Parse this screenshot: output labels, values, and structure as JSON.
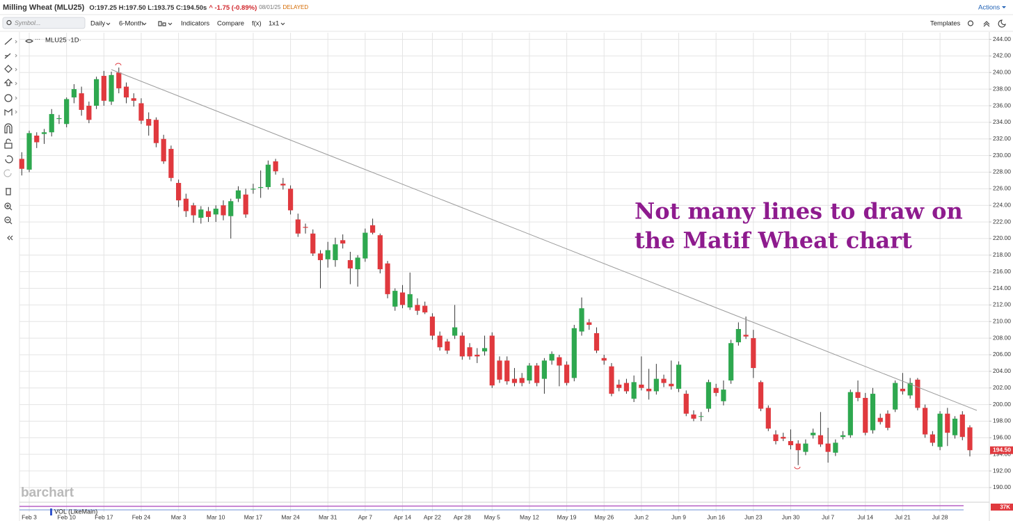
{
  "ui": {
    "symbol_title": "Milling Wheat (MLU25)",
    "ohlc": "O:197.25 H:197.50 L:193.75 C:194.50s",
    "change": "^ -1.75 (-0.89%)",
    "date": "08/01/25",
    "status": "DELAYED",
    "actions": "Actions",
    "symbol_placeholder": "Symbol...",
    "toolbar": [
      "Daily",
      "6-Month",
      "Indicators",
      "Compare",
      "f(x)",
      "1x1"
    ],
    "templates": "Templates",
    "chart_label": "MLU25 ·1D·",
    "watermark": "barchart",
    "volume_label": "VOL (LikeMain)",
    "volume_scale_label": "37K"
  },
  "chart_data": {
    "type": "candlestick",
    "annotations": [
      "Not many lines to draw on",
      "the Matif Wheat chart"
    ],
    "annotation_color": "#8e1b8e",
    "up_color": "#2ea84f",
    "down_color": "#e0393e",
    "last_price_label": "194.50",
    "grid": true,
    "categories": [
      null,
      "Feb 3",
      null,
      null,
      null,
      null,
      "Feb 10",
      null,
      null,
      null,
      null,
      "Feb 17",
      null,
      null,
      null,
      null,
      "Feb 24",
      null,
      null,
      null,
      null,
      "Mar 3",
      null,
      null,
      null,
      null,
      "Mar 10",
      null,
      null,
      null,
      null,
      "Mar 17",
      null,
      null,
      null,
      null,
      "Mar 24",
      null,
      null,
      null,
      null,
      "Mar 31",
      null,
      null,
      null,
      null,
      "Apr 7",
      null,
      null,
      null,
      null,
      "Apr 14",
      null,
      null,
      null,
      "Apr 22",
      null,
      null,
      null,
      "Apr 28",
      null,
      null,
      null,
      "May 5",
      null,
      null,
      null,
      null,
      "May 12",
      null,
      null,
      null,
      null,
      "May 19",
      null,
      null,
      null,
      null,
      "May 26",
      null,
      null,
      null,
      null,
      "Jun 2",
      null,
      null,
      null,
      null,
      "Jun 9",
      null,
      null,
      null,
      null,
      "Jun 16",
      null,
      null,
      null,
      null,
      "Jun 23",
      null,
      null,
      null,
      null,
      "Jun 30",
      null,
      null,
      null,
      null,
      "Jul 7",
      null,
      null,
      null,
      null,
      "Jul 14",
      null,
      null,
      null,
      null,
      "Jul 21",
      null,
      null,
      null,
      null,
      "Jul 28",
      null,
      null,
      null,
      null
    ],
    "open": [
      229.6,
      228.3,
      232.4,
      232.6,
      232.8,
      234.4,
      233.8,
      237.0,
      237.5,
      236.0,
      236.0,
      239.6,
      236.5,
      240.0,
      238.3,
      236.9,
      236.3,
      234.4,
      234.3,
      232.0,
      230.8,
      226.7,
      224.8,
      224.0,
      222.5,
      223.3,
      222.9,
      224.0,
      222.7,
      224.8,
      225.3,
      225.9,
      226.1,
      226.2,
      229.3,
      226.6,
      226.0,
      222.3,
      221.4,
      220.6,
      218.2,
      217.5,
      217.4,
      219.8,
      217.4,
      216.3,
      217.6,
      221.6,
      220.4,
      217.0,
      211.8,
      213.5,
      211.7,
      212.0,
      211.9,
      210.6,
      208.3,
      207.6,
      208.3,
      208.3,
      206.9,
      206.0,
      206.4,
      208.3,
      205.3,
      205.3,
      203.1,
      203.2,
      202.9,
      204.7,
      203.1,
      205.3,
      205.7,
      204.8,
      203.2,
      208.8,
      209.9,
      208.6,
      205.6,
      204.6,
      202.4,
      202.6,
      200.7,
      202.4,
      201.9,
      201.6,
      203.1,
      202.5,
      201.9,
      201.3,
      198.8,
      198.6,
      199.5,
      202.0,
      200.4,
      202.9,
      207.5,
      208.4,
      208.0,
      202.7,
      199.6,
      196.4,
      196.1,
      195.6,
      195.3,
      194.3,
      196.3,
      196.3,
      195.3,
      194.2,
      196.1,
      196.3,
      201.5,
      200.8,
      196.9,
      198.4,
      198.9,
      199.4,
      201.9,
      201.1,
      203.0,
      199.6,
      196.4,
      194.9,
      198.9,
      196.3,
      198.8,
      197.25
    ],
    "high": [
      230.4,
      233.0,
      232.8,
      233.2,
      235.6,
      234.9,
      237.0,
      238.6,
      238.3,
      236.5,
      239.5,
      240.2,
      240.1,
      240.6,
      238.8,
      237.5,
      236.9,
      235.2,
      234.6,
      232.5,
      231.2,
      227.1,
      225.4,
      224.3,
      223.9,
      223.8,
      224.0,
      224.6,
      224.8,
      226.3,
      226.0,
      226.6,
      228.2,
      229.4,
      229.6,
      227.3,
      226.4,
      223.0,
      221.8,
      221.1,
      218.6,
      219.6,
      220.1,
      220.5,
      218.4,
      218.0,
      221.2,
      222.4,
      220.6,
      217.3,
      214.0,
      214.4,
      215.9,
      212.8,
      212.4,
      211.0,
      208.8,
      207.9,
      212.0,
      208.7,
      207.4,
      206.8,
      208.3,
      208.7,
      205.8,
      205.8,
      204.4,
      203.8,
      205.0,
      205.0,
      205.6,
      206.4,
      206.0,
      205.2,
      209.6,
      212.9,
      210.3,
      209.3,
      206.0,
      205.0,
      203.0,
      203.1,
      203.5,
      205.8,
      204.3,
      204.9,
      203.6,
      205.3,
      205.2,
      201.7,
      199.3,
      199.1,
      203.0,
      202.5,
      202.9,
      207.8,
      209.9,
      210.6,
      209.0,
      202.9,
      199.9,
      196.9,
      196.6,
      197.0,
      195.7,
      195.8,
      197.1,
      199.1,
      197.2,
      195.8,
      196.8,
      201.8,
      202.9,
      201.4,
      202.0,
      198.9,
      199.3,
      202.9,
      203.8,
      203.2,
      203.2,
      200.0,
      196.8,
      199.2,
      199.6,
      198.6,
      199.2,
      197.5
    ],
    "low": [
      227.6,
      228.0,
      230.9,
      231.4,
      232.3,
      233.8,
      233.4,
      236.3,
      234.8,
      233.9,
      235.6,
      236.0,
      236.1,
      237.5,
      236.3,
      235.9,
      233.8,
      232.4,
      231.0,
      229.0,
      226.9,
      223.8,
      222.6,
      221.9,
      221.8,
      222.0,
      222.0,
      222.2,
      220.0,
      224.4,
      222.5,
      225.4,
      224.9,
      225.9,
      227.7,
      225.9,
      222.9,
      220.2,
      220.6,
      217.9,
      214.0,
      216.5,
      216.6,
      218.8,
      214.5,
      214.2,
      217.2,
      220.5,
      215.8,
      212.8,
      211.3,
      211.6,
      211.4,
      210.8,
      210.9,
      207.8,
      206.5,
      206.1,
      207.9,
      205.4,
      205.4,
      205.0,
      205.9,
      202.0,
      202.6,
      202.4,
      202.2,
      202.2,
      202.5,
      202.2,
      201.3,
      204.8,
      202.2,
      202.3,
      202.8,
      208.3,
      209.0,
      206.2,
      204.8,
      201.0,
      201.6,
      201.3,
      200.3,
      201.7,
      200.6,
      201.2,
      202.1,
      201.8,
      201.5,
      198.6,
      198.0,
      198.0,
      199.1,
      201.0,
      199.9,
      202.5,
      207.1,
      207.9,
      203.2,
      199.2,
      196.8,
      195.2,
      195.6,
      194.6,
      192.7,
      193.9,
      195.9,
      194.9,
      193.0,
      193.8,
      195.8,
      196.0,
      200.4,
      196.3,
      196.5,
      197.6,
      196.9,
      199.1,
      201.2,
      200.7,
      199.3,
      196.0,
      195.0,
      194.5,
      195.0,
      195.9,
      195.7,
      193.75
    ],
    "close": [
      228.4,
      232.7,
      231.6,
      232.8,
      235.0,
      234.5,
      236.8,
      238.0,
      235.5,
      234.3,
      239.2,
      236.6,
      239.7,
      238.1,
      237.0,
      236.6,
      234.2,
      233.6,
      231.5,
      229.3,
      227.3,
      224.6,
      223.3,
      222.8,
      223.5,
      222.6,
      223.6,
      222.8,
      224.5,
      225.8,
      222.9,
      226.0,
      226.2,
      228.9,
      228.1,
      226.4,
      223.4,
      220.6,
      221.3,
      218.2,
      217.4,
      218.6,
      219.3,
      219.4,
      216.4,
      217.7,
      220.7,
      220.7,
      216.3,
      213.3,
      213.7,
      212.0,
      213.3,
      211.3,
      211.1,
      208.3,
      206.9,
      206.5,
      209.3,
      205.8,
      205.8,
      205.8,
      206.8,
      202.3,
      203.0,
      202.8,
      202.6,
      202.6,
      204.7,
      202.6,
      205.3,
      206.1,
      204.7,
      202.6,
      209.2,
      211.6,
      209.6,
      206.5,
      205.3,
      201.3,
      202.0,
      201.6,
      202.7,
      202.0,
      201.6,
      203.1,
      202.6,
      202.2,
      204.8,
      198.9,
      198.3,
      198.6,
      202.7,
      201.4,
      201.8,
      207.4,
      209.1,
      208.2,
      204.4,
      199.5,
      197.1,
      195.6,
      195.9,
      195.1,
      194.5,
      195.3,
      196.6,
      195.2,
      194.3,
      195.4,
      196.3,
      201.5,
      200.8,
      196.6,
      201.3,
      197.9,
      197.2,
      202.6,
      201.6,
      202.6,
      199.6,
      196.4,
      195.4,
      198.9,
      196.6,
      198.3,
      196.1,
      194.5
    ],
    "ylim": [
      188.4,
      244.8
    ],
    "yticks": [
      {
        "value": 190,
        "label": "190.00"
      },
      {
        "value": 192,
        "label": "192.00"
      },
      {
        "value": 194,
        "label": "194.00"
      },
      {
        "value": 196,
        "label": "196.00"
      },
      {
        "value": 198,
        "label": "198.00"
      },
      {
        "value": 200,
        "label": "200.00"
      },
      {
        "value": 202,
        "label": "202.00"
      },
      {
        "value": 204,
        "label": "204.00"
      },
      {
        "value": 206,
        "label": "206.00"
      },
      {
        "value": 208,
        "label": "208.00"
      },
      {
        "value": 210,
        "label": "210.00"
      },
      {
        "value": 212,
        "label": "212.00"
      },
      {
        "value": 214,
        "label": "214.00"
      },
      {
        "value": 216,
        "label": "216.00"
      },
      {
        "value": 218,
        "label": "218.00"
      },
      {
        "value": 220,
        "label": "220.00"
      },
      {
        "value": 222,
        "label": "222.00"
      },
      {
        "value": 224,
        "label": "224.00"
      },
      {
        "value": 226,
        "label": "226.00"
      },
      {
        "value": 228,
        "label": "228.00"
      },
      {
        "value": 230,
        "label": "230.00"
      },
      {
        "value": 232,
        "label": "232.00"
      },
      {
        "value": 234,
        "label": "234.00"
      },
      {
        "value": 236,
        "label": "236.00"
      },
      {
        "value": 238,
        "label": "238.00"
      },
      {
        "value": 240,
        "label": "240.00"
      },
      {
        "value": 242,
        "label": "242.00"
      },
      {
        "value": 244,
        "label": "244.00"
      }
    ]
  }
}
